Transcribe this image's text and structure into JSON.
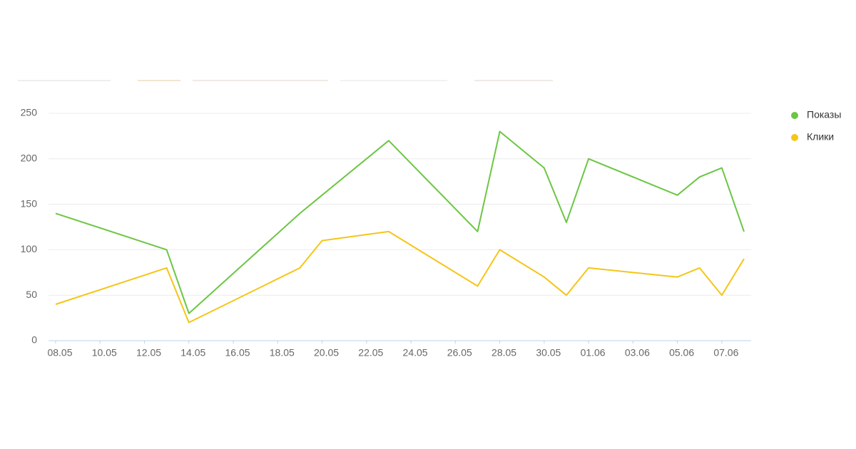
{
  "chart_data": {
    "type": "line",
    "x": [
      "08.05",
      "13.05",
      "14.05",
      "19.05",
      "20.05",
      "23.05",
      "27.05",
      "28.05",
      "30.05",
      "31.05",
      "01.06",
      "05.06",
      "06.06",
      "07.06",
      "08.06"
    ],
    "series": [
      {
        "name": "Показы",
        "color": "#6cc644",
        "values": [
          140,
          100,
          30,
          140,
          160,
          220,
          120,
          230,
          190,
          130,
          200,
          160,
          180,
          190,
          120
        ]
      },
      {
        "name": "Клики",
        "color": "#f5c518",
        "values": [
          40,
          80,
          20,
          80,
          110,
          120,
          60,
          100,
          70,
          50,
          80,
          70,
          80,
          50,
          90
        ]
      }
    ],
    "xlim": [
      "08.05",
      "08.06"
    ],
    "xticks": [
      "08.05",
      "10.05",
      "12.05",
      "14.05",
      "16.05",
      "18.05",
      "20.05",
      "22.05",
      "24.05",
      "26.05",
      "28.05",
      "30.05",
      "01.06",
      "03.06",
      "05.06",
      "07.06"
    ],
    "ylim": [
      0,
      250
    ],
    "yticks": [
      0,
      50,
      100,
      150,
      200,
      250
    ],
    "grid": true,
    "legend": "right"
  }
}
